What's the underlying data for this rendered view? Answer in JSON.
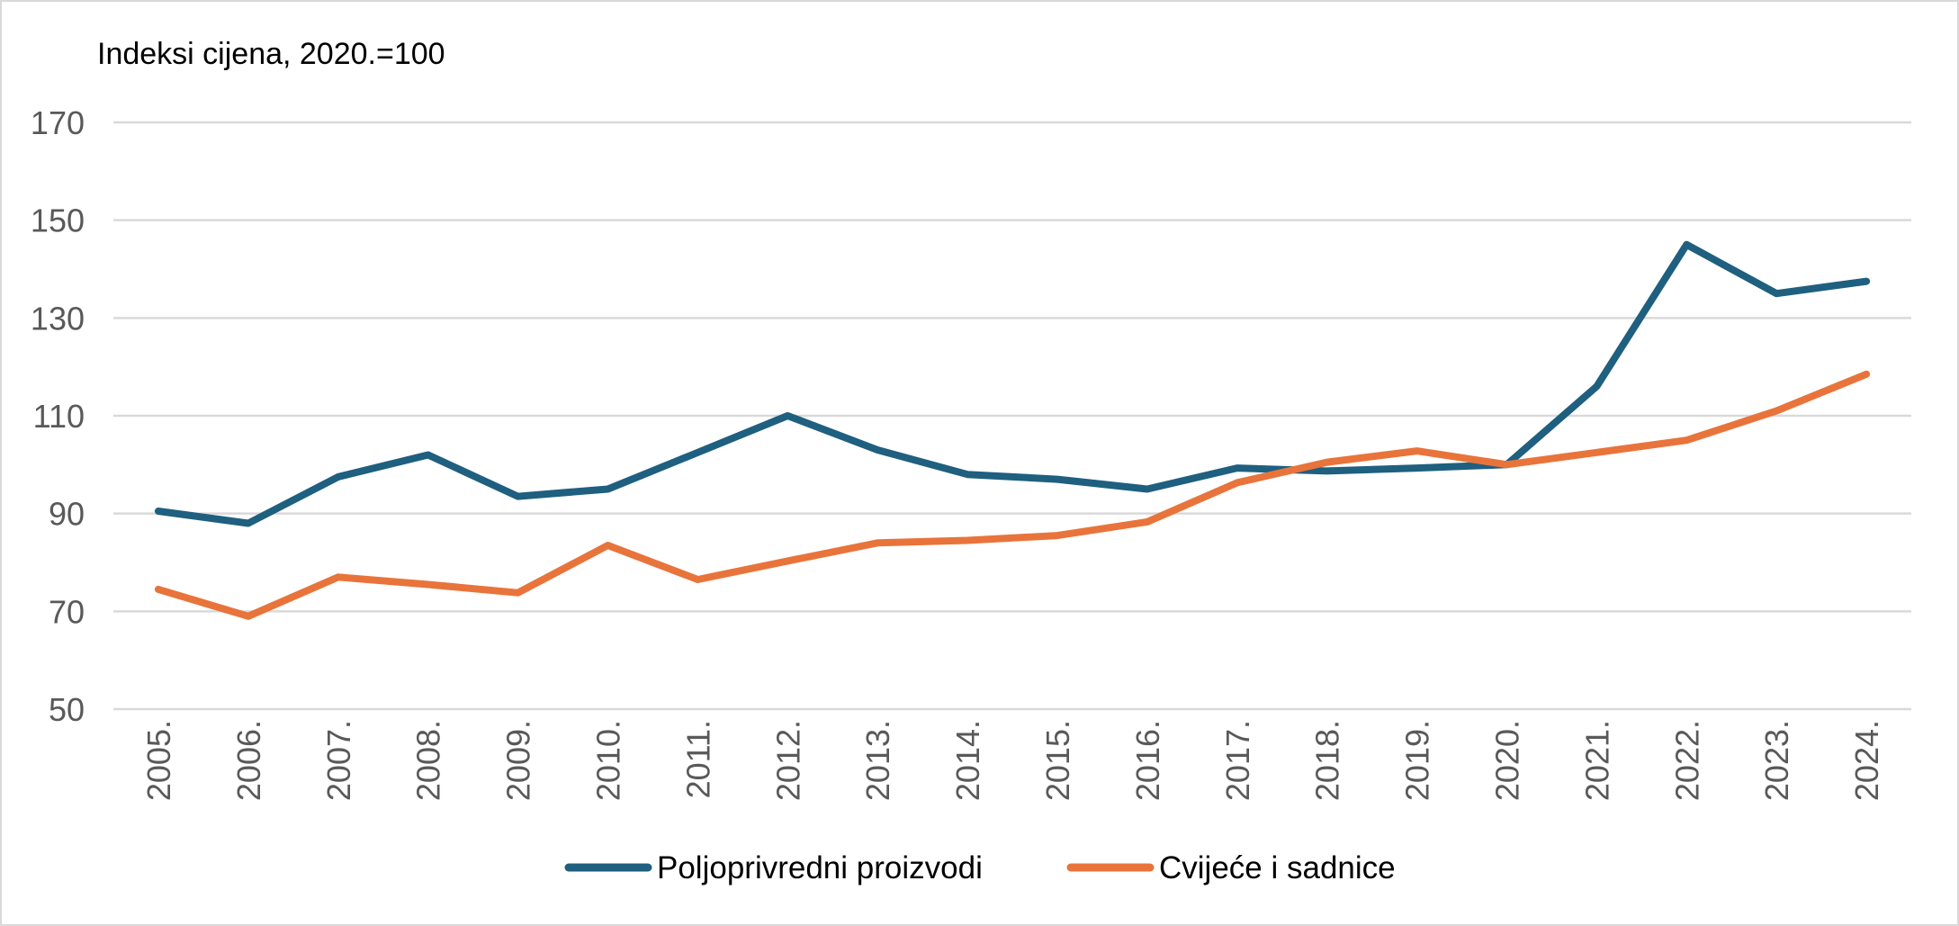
{
  "chart_data": {
    "type": "line",
    "title": "",
    "ylabel": "Indeksi cijena, 2020.=100",
    "xlabel": "",
    "ylim": [
      50,
      170
    ],
    "yticks": [
      50,
      70,
      90,
      110,
      130,
      150,
      170
    ],
    "ytick_labels": [
      "50",
      "70",
      "90",
      "110",
      "130",
      "150",
      "170"
    ],
    "grid": true,
    "legend_position": "bottom",
    "categories": [
      "2005.",
      "2006.",
      "2007.",
      "2008.",
      "2009.",
      "2010.",
      "2011.",
      "2012.",
      "2013.",
      "2014.",
      "2015.",
      "2016.",
      "2017.",
      "2018.",
      "2019.",
      "2020.",
      "2021.",
      "2022.",
      "2023.",
      "2024."
    ],
    "series": [
      {
        "name": "Poljoprivredni proizvodi",
        "color": "#1f5f7f",
        "values": [
          90.5,
          88.0,
          97.5,
          102.0,
          93.5,
          95.0,
          102.5,
          110.0,
          103.0,
          98.0,
          97.0,
          95.0,
          99.3,
          98.7,
          99.3,
          100.0,
          116.0,
          145.0,
          135.0,
          137.5
        ]
      },
      {
        "name": "Cvijeće i sadnice",
        "color": "#e8743b",
        "values": [
          74.5,
          69.0,
          77.0,
          75.5,
          73.8,
          83.5,
          76.5,
          80.3,
          84.0,
          84.5,
          85.5,
          88.3,
          96.3,
          100.5,
          102.8,
          100.0,
          102.5,
          105.0,
          111.0,
          118.5
        ]
      }
    ]
  }
}
